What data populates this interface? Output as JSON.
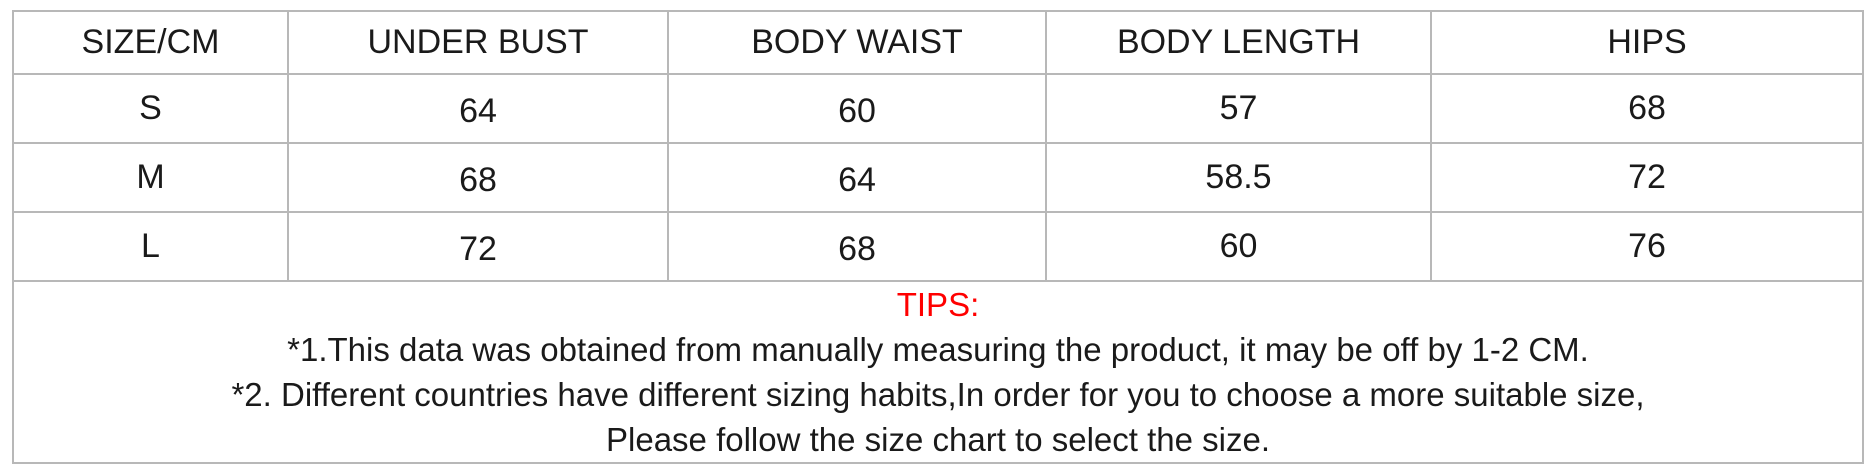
{
  "table": {
    "headers": [
      "SIZE/CM",
      "UNDER BUST",
      "BODY WAIST",
      "BODY LENGTH",
      "HIPS"
    ],
    "rows": [
      [
        "S",
        "64",
        "60",
        "57",
        "68"
      ],
      [
        "M",
        "68",
        "64",
        "58.5",
        "72"
      ],
      [
        "L",
        "72",
        "68",
        "60",
        "76"
      ]
    ]
  },
  "tips": {
    "title": "TIPS:",
    "title_color": "#ff0000",
    "lines": [
      "*1.This data was obtained from manually measuring the product, it may be off by 1-2 CM.",
      "*2. Different countries have different sizing habits,In order for you to choose a more suitable size,",
      "Please follow the size chart to select the size."
    ]
  }
}
